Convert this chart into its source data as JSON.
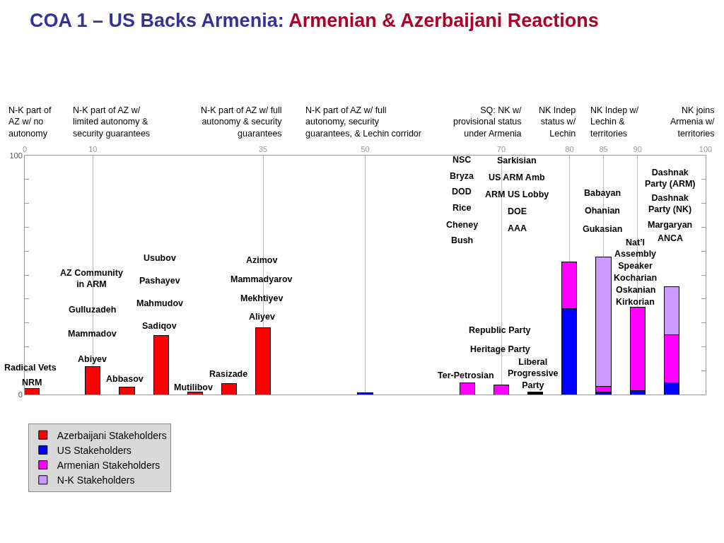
{
  "chart_data": {
    "type": "bar",
    "stacked": true,
    "title": "COA 1 – US Backs Armenia:",
    "subtitle": "Armenian & Azerbaijani Reactions",
    "x": [
      1,
      10,
      15,
      20,
      25,
      30,
      35,
      50,
      65,
      70,
      75,
      80,
      85,
      90,
      95
    ],
    "series": [
      {
        "name": "Azerbaijani Stakeholders",
        "color": "#ff0000",
        "values": [
          2.4,
          11.6,
          3,
          24.7,
          1,
          4.5,
          28,
          null,
          null,
          null,
          null,
          null,
          null,
          null,
          null
        ]
      },
      {
        "name": "US Stakeholders",
        "color": "#0000ff",
        "values": [
          null,
          null,
          null,
          null,
          null,
          null,
          null,
          0.8,
          null,
          null,
          null,
          36,
          1,
          1.5,
          5
        ]
      },
      {
        "name": "Armenian Stakeholders",
        "color": "#ff00ff",
        "values": [
          null,
          null,
          null,
          null,
          null,
          null,
          null,
          null,
          4.8,
          4,
          null,
          19.5,
          2.5,
          35,
          20
        ]
      },
      {
        "name": "N-K Stakeholders",
        "color": "#cc99ff",
        "values": [
          null,
          null,
          null,
          null,
          null,
          null,
          null,
          null,
          null,
          null,
          null,
          null,
          54,
          null,
          20
        ]
      },
      {
        "color": "#000000",
        "values": [
          null,
          null,
          null,
          null,
          null,
          null,
          null,
          null,
          null,
          null,
          1,
          null,
          null,
          null,
          null
        ]
      }
    ],
    "xlim": [
      0,
      100
    ],
    "xticks": [
      0,
      10,
      35,
      50,
      70,
      80,
      85,
      90,
      100
    ],
    "ylim": [
      0,
      100
    ],
    "yticks": [
      0,
      {
        "value": 10,
        "label": null
      },
      {
        "value": 20,
        "label": null
      },
      {
        "value": 30,
        "label": null
      },
      {
        "value": 40,
        "label": null
      },
      {
        "value": 50,
        "label": null
      },
      {
        "value": 60,
        "label": null
      },
      {
        "value": 70,
        "label": null
      },
      {
        "value": 80,
        "label": null
      },
      {
        "value": 90,
        "label": null
      },
      100
    ],
    "grid": "x",
    "legend": "bottom left",
    "annotations": [
      "N-K part of\nAZ w/ no\nautonomy",
      "N-K part of AZ w/\nlimited autonomy &\nsecurity guarantees",
      "N-K part of AZ w/ full\nautonomy & security\nguarantees",
      "N-K part of AZ w/ full\nautonomy, security\nguarantees, & Lechin corridor",
      "SQ: NK w/\nprovisional status\nunder Armenia",
      "NK Indep\nstatus w/\nLechin",
      "NK Indep w/\nLechin &\nterritories",
      "NK joins\nArmenia w/\nterritories",
      "Radical Vets",
      "NRM",
      "AZ Community\nin ARM",
      "Gulluzadeh",
      "Mammadov",
      "Abiyev",
      "Abbasov",
      "Usubov",
      "Pashayev",
      "Mahmudov",
      "Sadiqov",
      "Mutilibov",
      "Rasizade",
      "Azimov",
      "Mammadyarov",
      "Mekhtiyev",
      "Aliyev",
      "NSC",
      "Bryza",
      "DOD",
      "Rice",
      "Cheney",
      "Bush",
      "Sarkisian",
      "US ARM Amb",
      "ARM US Lobby",
      "DOE",
      "AAA",
      "Republic Party",
      "Heritage Party",
      "Liberal\nProgressive\nParty",
      "Ter-Petrosian",
      "Babayan",
      "Ohanian",
      "Gukasian",
      "Nat’l\nAssembly\nSpeaker",
      "Kocharian",
      "Oskanian",
      "Kirkorian",
      "Dashnak\nParty (ARM)",
      "Dashnak\nParty (NK)",
      "Margaryan",
      "ANCA"
    ]
  }
}
